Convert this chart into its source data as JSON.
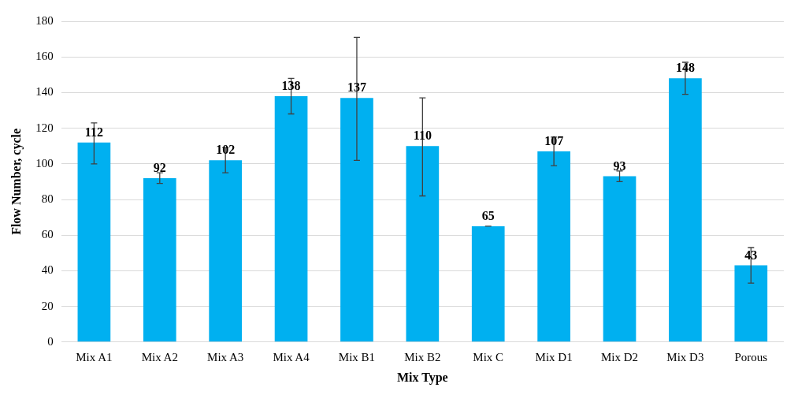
{
  "chart_data": {
    "type": "bar",
    "xlabel": "Mix Type",
    "ylabel": "Flow Number, cycle",
    "categories": [
      "Mix A1",
      "Mix A2",
      "Mix A3",
      "Mix A4",
      "Mix B1",
      "Mix B2",
      "Mix C",
      "Mix D1",
      "Mix D2",
      "Mix D3",
      "Porous"
    ],
    "values": [
      112,
      92,
      102,
      138,
      137,
      110,
      65,
      107,
      93,
      148,
      43
    ],
    "errors": [
      [
        100,
        123
      ],
      [
        89,
        95
      ],
      [
        95,
        109
      ],
      [
        128,
        148
      ],
      [
        102,
        171
      ],
      [
        82,
        137
      ],
      0,
      [
        99,
        115
      ],
      [
        90,
        96
      ],
      [
        139,
        157
      ],
      [
        33,
        53
      ]
    ],
    "color": "#00b0f0",
    "ylim": [
      0,
      180
    ],
    "yticks": [
      0,
      20,
      40,
      60,
      80,
      100,
      120,
      140,
      160,
      180
    ],
    "grid": "y",
    "data_labels": true,
    "legend": false
  }
}
